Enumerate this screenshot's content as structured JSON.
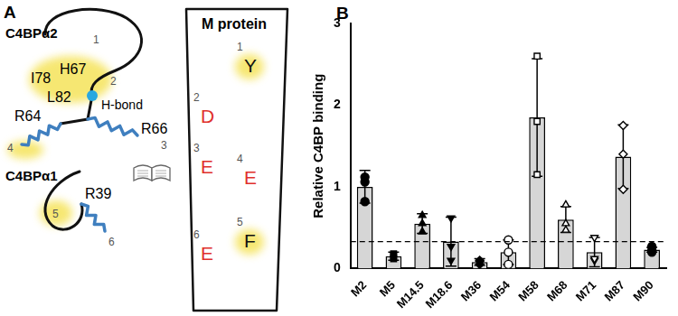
{
  "diagram": {
    "panel_label": "A",
    "c4bp_alpha2": {
      "name": "C4BPα2",
      "sites": [
        {
          "number": 1,
          "residues": [
            "H67",
            "I78",
            "L82"
          ],
          "highlight": true
        },
        {
          "number": 2,
          "label": "H-bond"
        },
        {
          "number": 3,
          "residues": [
            "R66"
          ]
        },
        {
          "number": 4,
          "residues": [
            "R64"
          ],
          "highlight": true
        }
      ]
    },
    "c4bp_alpha1": {
      "name": "C4BPα1",
      "sites": [
        {
          "number": 5,
          "highlight": true
        },
        {
          "number": 6,
          "residues": [
            "R39"
          ]
        }
      ]
    },
    "m_protein": {
      "name": "M protein",
      "sites": [
        {
          "number": 1,
          "residue": "Y",
          "highlight": true
        },
        {
          "number": 2,
          "residue": "D",
          "color": "#e0302b"
        },
        {
          "number": 3,
          "residue": "E",
          "color": "#e0302b"
        },
        {
          "number": 4,
          "residue": "E",
          "color": "#e0302b"
        },
        {
          "number": 5,
          "residue": "F",
          "highlight": true
        },
        {
          "number": 6,
          "residue": "E",
          "color": "#e0302b"
        }
      ]
    }
  },
  "chart_data": {
    "type": "bar",
    "panel_label": "B",
    "ylabel": "Relative C4BP binding",
    "categories": [
      "M2",
      "M5",
      "M14.5",
      "M18.6",
      "M36",
      "M54",
      "M58",
      "M68",
      "M71",
      "M87",
      "M90"
    ],
    "values": [
      1.0,
      0.15,
      0.55,
      0.33,
      0.08,
      0.2,
      1.85,
      0.6,
      0.2,
      1.37,
      0.23
    ],
    "errors": [
      0.2,
      0.05,
      0.12,
      0.3,
      0.04,
      0.15,
      0.72,
      0.16,
      0.18,
      0.39,
      0.03
    ],
    "replicates": [
      {
        "values": [
          1.12,
          0.82,
          1.06
        ],
        "marker": "circle"
      },
      {
        "values": [
          0.12,
          0.18,
          0.15
        ],
        "marker": "square"
      },
      {
        "values": [
          0.55,
          0.65,
          0.45
        ],
        "marker": "triangle"
      },
      {
        "values": [
          0.62,
          0.1,
          0.27
        ],
        "marker": "triangle-down"
      },
      {
        "values": [
          0.1,
          0.05,
          0.09
        ],
        "marker": "diamond"
      },
      {
        "values": [
          0.35,
          0.05,
          0.2
        ],
        "marker": "open-circle"
      },
      {
        "values": [
          2.6,
          1.8,
          1.15
        ],
        "marker": "open-square"
      },
      {
        "values": [
          0.78,
          0.55,
          0.47
        ],
        "marker": "open-triangle"
      },
      {
        "values": [
          0.38,
          0.1,
          0.12
        ],
        "marker": "open-triangle-down"
      },
      {
        "values": [
          1.75,
          1.4,
          0.97
        ],
        "marker": "open-diamond"
      },
      {
        "values": [
          0.27,
          0.22,
          0.2
        ],
        "marker": "circle"
      }
    ],
    "reference_line": {
      "value": 0.33,
      "line_style": "dashed"
    },
    "color": "#d6d6d6",
    "ylim": [
      0,
      3
    ],
    "yticks": [
      0,
      1,
      2,
      3
    ],
    "grid": false
  }
}
